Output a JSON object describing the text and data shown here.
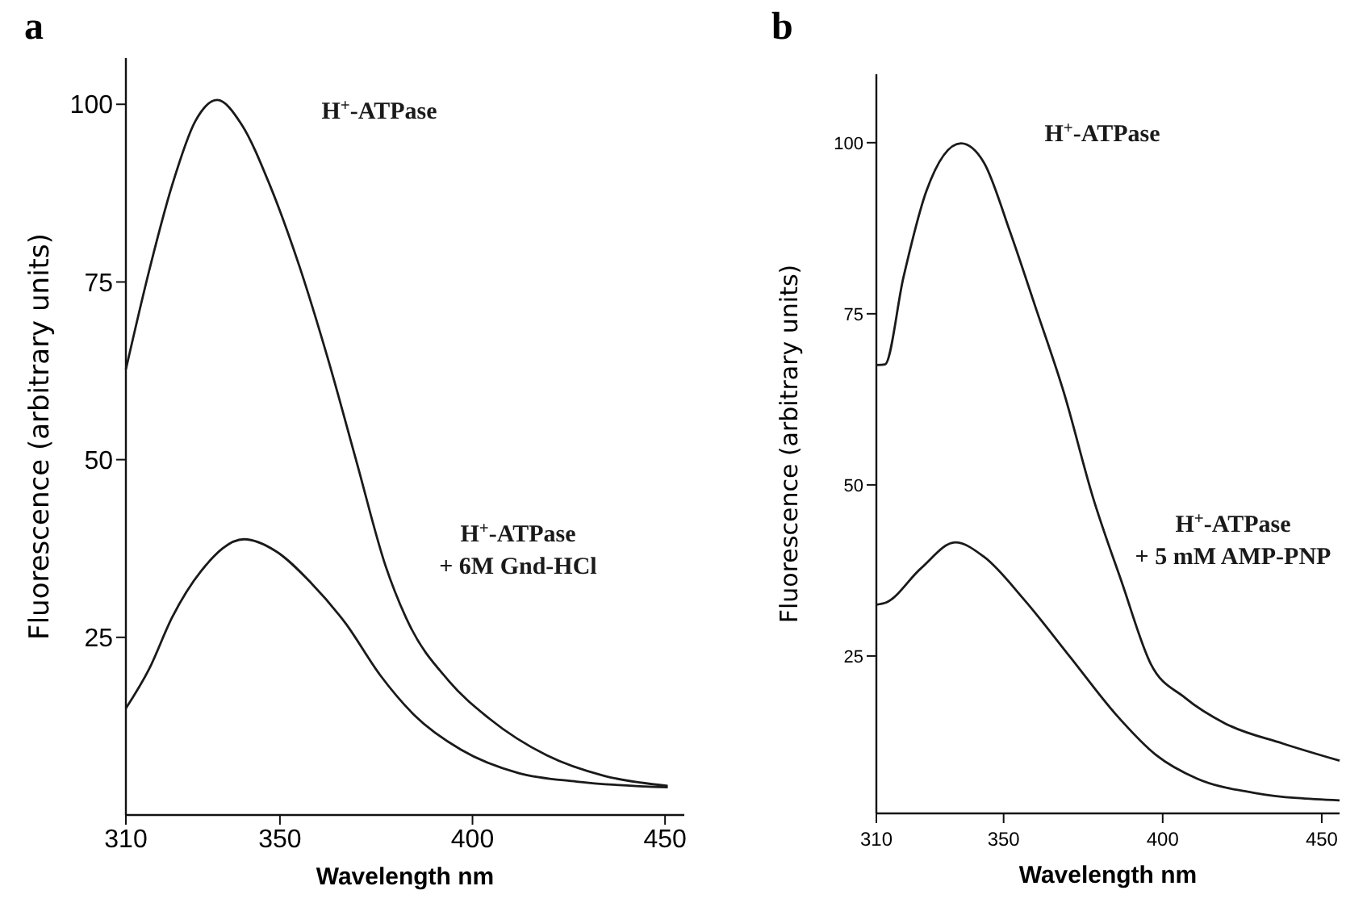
{
  "chart_data": [
    {
      "type": "line",
      "title": "a",
      "xlabel": "Wavelength nm",
      "ylabel": "Fluorescence  (arbitrary units)",
      "xlim": [
        310,
        455
      ],
      "ylim": [
        0,
        106.5
      ],
      "xticks": [
        310,
        350,
        400,
        450
      ],
      "yticks": [
        25,
        50,
        75,
        100
      ],
      "marker": "none",
      "line_style": "solid",
      "annotations": [
        "H$^{+}$-ATPase",
        "H$^{+}$-ATPase + 6M Gnd-HCl"
      ],
      "series": [
        {
          "color": "#1a1a1a",
          "x": [
            310,
            316,
            322,
            328,
            333.7,
            340,
            347.4,
            355,
            362.4,
            369.9,
            377.4,
            383.4,
            393.8,
            404.3,
            419.3,
            434.3,
            450.7
          ],
          "values": [
            62.7,
            76.5,
            88.6,
            97.6,
            100.6,
            97.2,
            88.6,
            77.3,
            64.3,
            49.7,
            35.1,
            27,
            18.9,
            13.6,
            8.4,
            5.5,
            4.1
          ]
        },
        {
          "color": "#1a1a1a",
          "x": [
            310,
            316,
            322,
            329.5,
            340.7,
            349,
            358,
            367,
            376,
            385,
            397,
            412,
            427,
            450.7
          ],
          "values": [
            15,
            20.5,
            27.8,
            34.3,
            38.8,
            37.1,
            32.7,
            27,
            19.7,
            14,
            9.2,
            5.9,
            4.7,
            3.9
          ]
        }
      ]
    },
    {
      "type": "line",
      "title": "b",
      "xlabel": "Wavelength nm",
      "ylabel": "Fluorescence  (arbitrary units)",
      "xlim": [
        310,
        455.6
      ],
      "ylim": [
        2,
        110
      ],
      "xticks": [
        310,
        350,
        400,
        450
      ],
      "yticks": [
        25,
        50,
        75,
        100
      ],
      "marker": "none",
      "line_style": "solid",
      "annotations": [
        "H$^{+}$-ATPase",
        "H$^{+}$-ATPase + 5 mM AMP-PNP"
      ],
      "series": [
        {
          "color": "#1a1a1a",
          "x": [
            310,
            312.7,
            318.5,
            325.7,
            336.6,
            343.8,
            352,
            360,
            369,
            378,
            387.2,
            396.2,
            407,
            419.8,
            437.8,
            455.6
          ],
          "values": [
            67.5,
            67.6,
            80.3,
            92.9,
            99.9,
            97.1,
            87,
            76,
            63.4,
            48.3,
            35.7,
            23.9,
            18.9,
            15.1,
            12.2,
            9.7
          ]
        },
        {
          "color": "#1a1a1a",
          "x": [
            310,
            313,
            324,
            334.8,
            343.8,
            356.5,
            371,
            385.4,
            398,
            410.7,
            428.8,
            455.6
          ],
          "values": [
            32.5,
            32.8,
            37.8,
            41.6,
            39.5,
            33.2,
            24.8,
            16.4,
            10.5,
            7.1,
            5,
            3.9
          ]
        }
      ]
    }
  ]
}
